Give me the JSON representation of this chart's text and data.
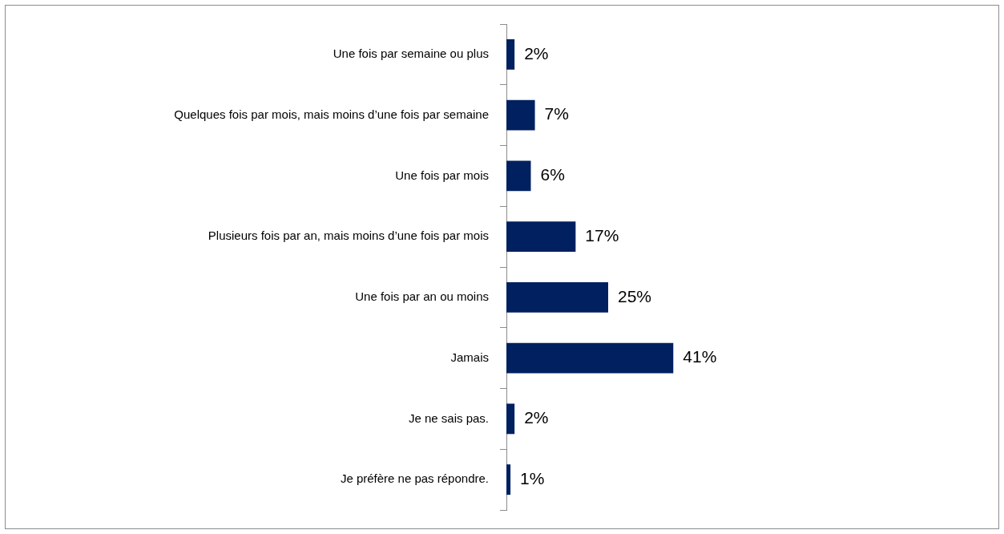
{
  "chart_data": {
    "type": "bar",
    "orientation": "horizontal",
    "categories": [
      "Une fois par semaine ou plus",
      "Quelques fois par mois, mais moins d’une fois par semaine",
      "Une fois par mois",
      "Plusieurs fois par an, mais moins d’une fois par mois",
      "Une fois par an ou moins",
      "Jamais",
      "Je ne sais pas.",
      "Je préfère ne pas répondre."
    ],
    "values": [
      2,
      7,
      6,
      17,
      25,
      41,
      2,
      1
    ],
    "value_labels": [
      "2%",
      "7%",
      "6%",
      "17%",
      "25%",
      "41%",
      "2%",
      "1%"
    ],
    "color": "#002060"
  }
}
